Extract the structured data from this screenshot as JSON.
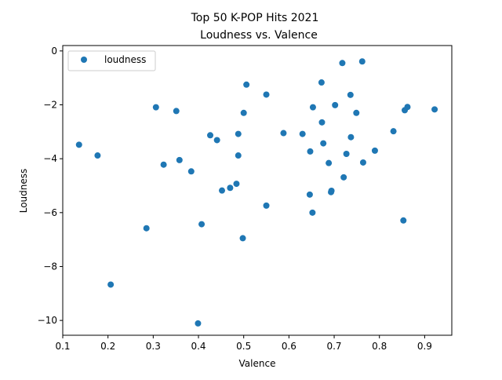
{
  "chart_data": {
    "type": "scatter",
    "title": "Top 50 K-POP Hits 2021",
    "subtitle": "Loudness vs. Valence",
    "xlabel": "Valence",
    "ylabel": "Loudness",
    "xlim": [
      0.1,
      0.96
    ],
    "ylim": [
      -10.55,
      0.2
    ],
    "xticks": [
      0.1,
      0.2,
      0.3,
      0.4,
      0.5,
      0.6,
      0.7,
      0.8,
      0.9
    ],
    "xtick_labels": [
      "0.1",
      "0.2",
      "0.3",
      "0.4",
      "0.5",
      "0.6",
      "0.7",
      "0.8",
      "0.9"
    ],
    "yticks": [
      0,
      -2,
      -4,
      -6,
      -8,
      -10
    ],
    "ytick_labels": [
      "0",
      "−2",
      "−4",
      "−6",
      "−8",
      "−10"
    ],
    "grid": false,
    "legend_position": "top-left",
    "color": "#1f77b4",
    "series": [
      {
        "name": "loudness",
        "points": [
          [
            0.136,
            -3.48
          ],
          [
            0.177,
            -3.88
          ],
          [
            0.206,
            -8.67
          ],
          [
            0.285,
            -6.58
          ],
          [
            0.306,
            -2.09
          ],
          [
            0.323,
            -4.22
          ],
          [
            0.351,
            -2.23
          ],
          [
            0.358,
            -4.05
          ],
          [
            0.384,
            -4.47
          ],
          [
            0.399,
            -10.11
          ],
          [
            0.407,
            -6.43
          ],
          [
            0.426,
            -3.13
          ],
          [
            0.441,
            -3.31
          ],
          [
            0.452,
            -5.18
          ],
          [
            0.47,
            -5.08
          ],
          [
            0.484,
            -4.93
          ],
          [
            0.488,
            -3.08
          ],
          [
            0.488,
            -3.88
          ],
          [
            0.498,
            -6.95
          ],
          [
            0.5,
            -2.3
          ],
          [
            0.506,
            -1.25
          ],
          [
            0.55,
            -1.62
          ],
          [
            0.55,
            -5.74
          ],
          [
            0.588,
            -3.05
          ],
          [
            0.63,
            -3.08
          ],
          [
            0.647,
            -3.73
          ],
          [
            0.646,
            -5.33
          ],
          [
            0.652,
            -6.0
          ],
          [
            0.653,
            -2.09
          ],
          [
            0.672,
            -1.17
          ],
          [
            0.673,
            -2.65
          ],
          [
            0.676,
            -3.43
          ],
          [
            0.688,
            -4.16
          ],
          [
            0.693,
            -5.24
          ],
          [
            0.694,
            -5.19
          ],
          [
            0.702,
            -2.01
          ],
          [
            0.718,
            -0.45
          ],
          [
            0.721,
            -4.69
          ],
          [
            0.727,
            -3.82
          ],
          [
            0.736,
            -1.63
          ],
          [
            0.737,
            -3.2
          ],
          [
            0.749,
            -2.3
          ],
          [
            0.762,
            -0.39
          ],
          [
            0.764,
            -4.14
          ],
          [
            0.79,
            -3.7
          ],
          [
            0.831,
            -2.98
          ],
          [
            0.853,
            -6.29
          ],
          [
            0.856,
            -2.2
          ],
          [
            0.862,
            -2.08
          ],
          [
            0.922,
            -2.17
          ]
        ]
      }
    ]
  }
}
